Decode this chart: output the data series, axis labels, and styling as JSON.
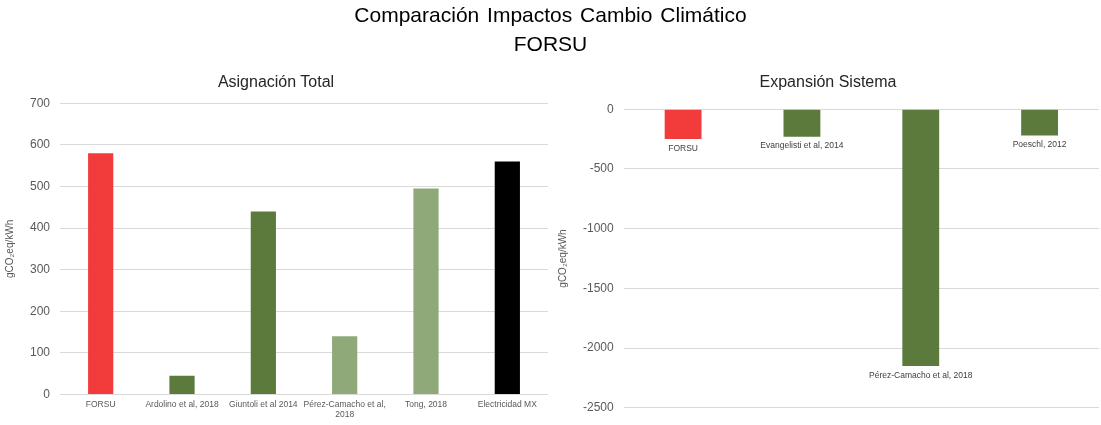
{
  "chart_data": [
    {
      "type": "bar",
      "title": "Comparación Impactos Cambio Climático\nFORSU",
      "subtitle": "Asignación Total",
      "ylabel": "gCO₂eq/kWh",
      "categories": [
        "FORSU",
        "Ardolino et al, 2018",
        "Giuntoli et al 2014",
        "Pérez-Camacho et al, 2018",
        "Tong, 2018",
        "Electricidad MX"
      ],
      "values": [
        580,
        45,
        440,
        140,
        495,
        560
      ],
      "colors": [
        "#f23c3c",
        "#5b7a3c",
        "#5b7a3c",
        "#8faa78",
        "#8faa78",
        "#000000"
      ],
      "ylim": [
        0,
        700
      ],
      "yticks": [
        0,
        100,
        200,
        300,
        400,
        500,
        600,
        700
      ],
      "grid": "y"
    },
    {
      "type": "bar",
      "subtitle": "Expansión Sistema",
      "ylabel": "gCO₂eq/kWh",
      "categories": [
        "FORSU",
        "Evangelisti et al, 2014",
        "Pérez-Camacho et al, 2018",
        "Poeschl, 2012"
      ],
      "values": [
        -250,
        -230,
        -2150,
        -220
      ],
      "colors": [
        "#f23c3c",
        "#5b7a3c",
        "#5b7a3c",
        "#5b7a3c"
      ],
      "ylim": [
        -2500,
        0
      ],
      "yticks": [
        -2500,
        -2000,
        -1500,
        -1000,
        -500,
        0
      ],
      "grid": "y",
      "tick_labels": "y"
    }
  ]
}
